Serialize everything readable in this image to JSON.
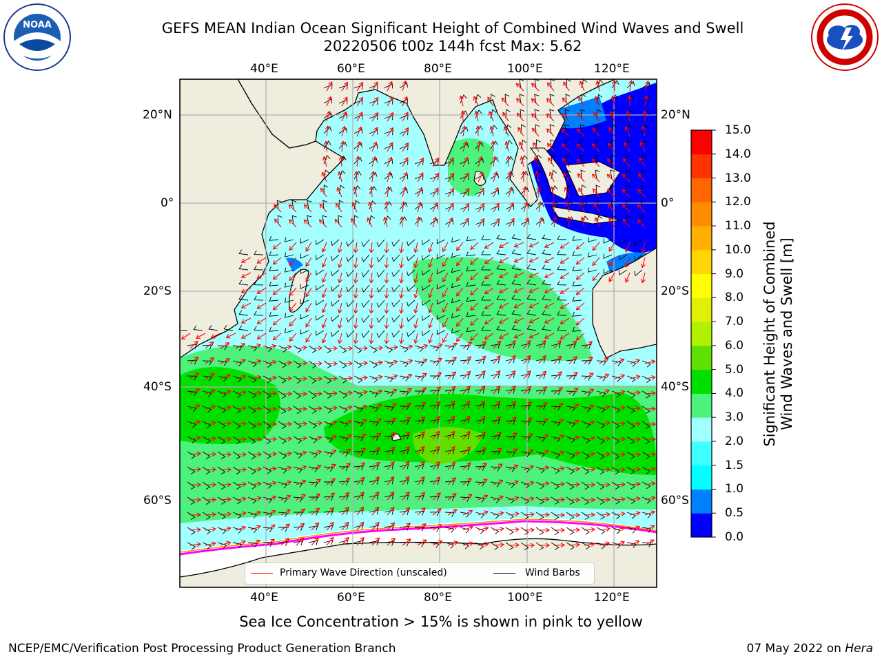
{
  "title": {
    "line1": "GEFS MEAN Indian Ocean Significant Height of Combined Wind Waves and Swell",
    "line2": "20220506 t00z 144h fcst   Max: 5.62"
  },
  "logos": {
    "left": "noaa-logo",
    "right": "nws-logo"
  },
  "map": {
    "lon_ticks": [
      "40°E",
      "60°E",
      "80°E",
      "100°E",
      "120°E"
    ],
    "lat_ticks": [
      "20°N",
      "0°",
      "20°S",
      "40°S",
      "60°S"
    ],
    "colors": {
      "land": "#efedde",
      "ice": "#ffffff",
      "ice_edge": [
        "#ff00ff",
        "#ff8c00",
        "#ffd700"
      ],
      "grid": "#b0b0b0",
      "wave_arrow": "#ff0000",
      "wind_barb": "#000000"
    }
  },
  "legend": {
    "primary_wave": "Primary Wave Direction (unscaled)",
    "wind_barbs": "Wind Barbs"
  },
  "colorbar": {
    "label_line1": "Significant Height of Combined",
    "label_line2": "Wind Waves and Swell [m]",
    "ticks": [
      "0.0",
      "0.5",
      "1.0",
      "1.5",
      "2.0",
      "3.0",
      "4.0",
      "5.0",
      "6.0",
      "7.0",
      "8.0",
      "9.0",
      "10.0",
      "11.0",
      "12.0",
      "13.0",
      "14.0",
      "15.0"
    ],
    "colors": [
      "#0000ff",
      "#0080ff",
      "#00ffff",
      "#40ffff",
      "#a0ffff",
      "#4cf27c",
      "#00e000",
      "#60e000",
      "#b0f000",
      "#e0f000",
      "#ffff00",
      "#ffd700",
      "#ffb000",
      "#ff8c00",
      "#ff6600",
      "#ff3300",
      "#ff0000"
    ]
  },
  "footnote": "Sea Ice Concentration > 15% is shown in pink to yellow",
  "credits": {
    "left": "NCEP/EMC/Verification Post Processing Product Generation Branch",
    "right_date": "07 May 2022 on ",
    "right_host": "Hera"
  }
}
